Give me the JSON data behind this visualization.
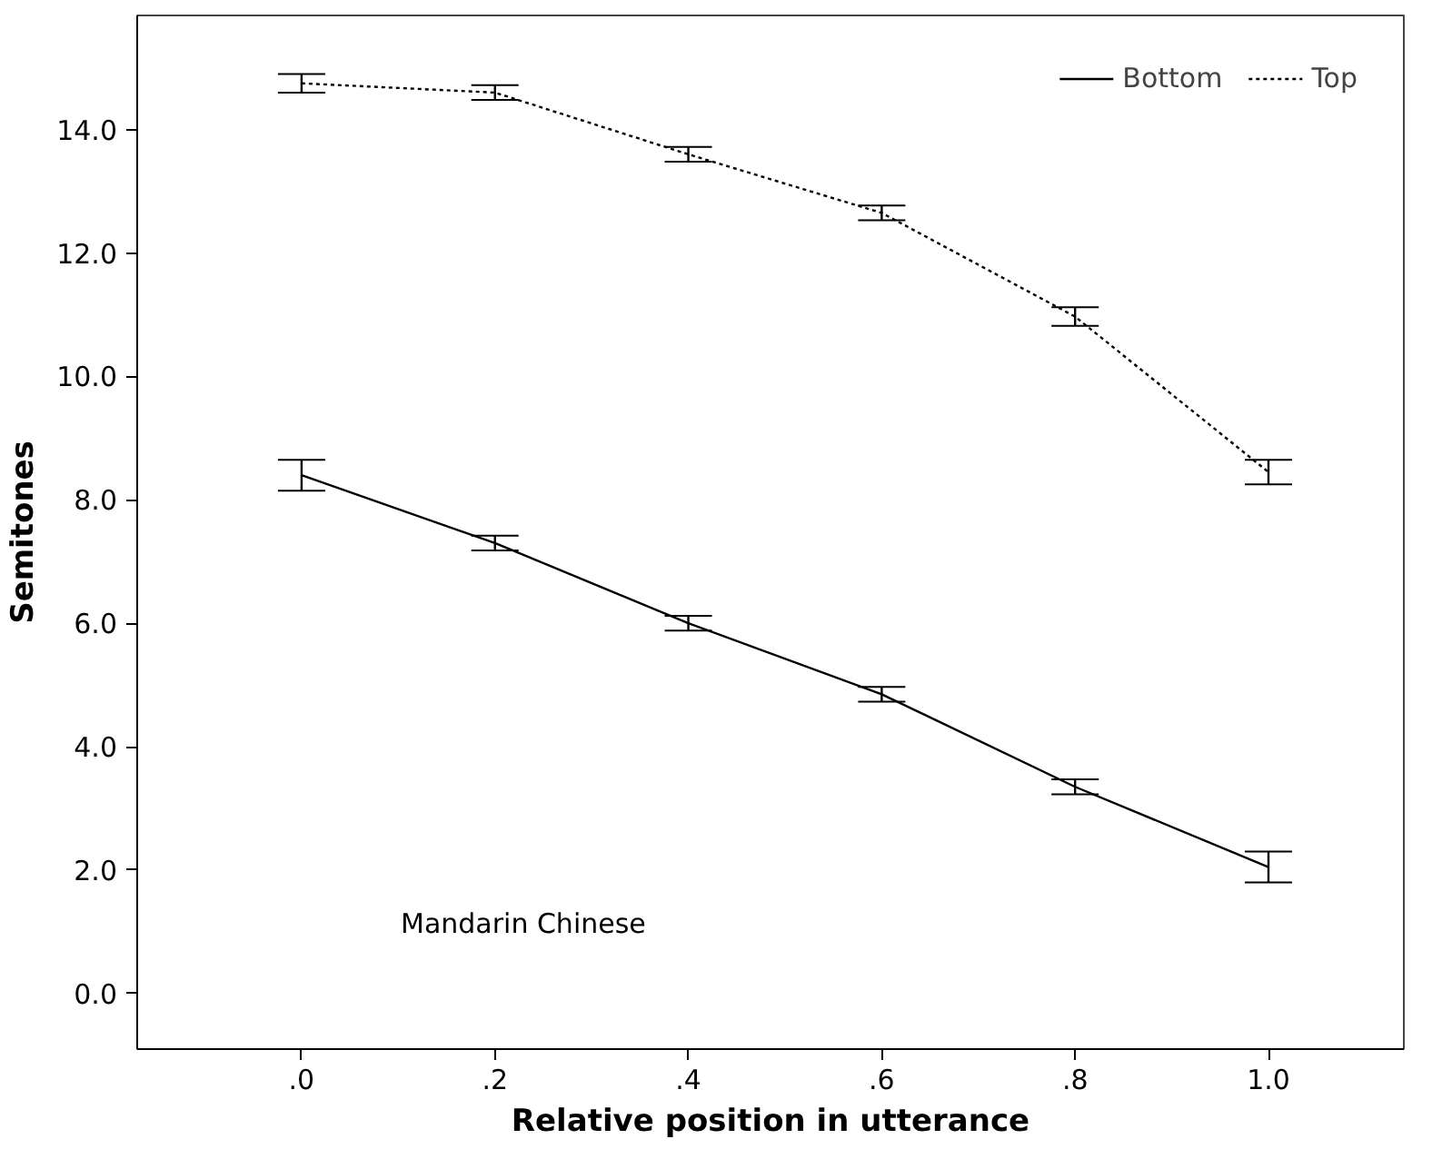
{
  "chart_data": {
    "type": "line",
    "xlabel": "Relative position in utterance",
    "ylabel": "Semitones",
    "x": [
      0,
      0.2,
      0.4,
      0.6,
      0.8,
      1.0
    ],
    "series": [
      {
        "name": "Bottom",
        "color": "#000000",
        "line_style": "solid",
        "values": [
          8.4,
          7.3,
          6.0,
          4.85,
          3.35,
          2.05
        ],
        "errors": [
          0.25,
          0.12,
          0.12,
          0.12,
          0.12,
          0.25
        ]
      },
      {
        "name": "Top",
        "color": "#000000",
        "line_style": "dotted",
        "values": [
          14.75,
          14.6,
          13.6,
          12.65,
          10.97,
          8.45
        ],
        "errors": [
          0.15,
          0.12,
          0.12,
          0.12,
          0.15,
          0.2
        ]
      }
    ],
    "xlim": [
      -0.17,
      1.14
    ],
    "ylim": [
      -0.9,
      15.85
    ],
    "xticks": [
      {
        "value": 0,
        "label": ".0"
      },
      {
        "value": 0.2,
        "label": ".2"
      },
      {
        "value": 0.4,
        "label": ".4"
      },
      {
        "value": 0.6,
        "label": ".6"
      },
      {
        "value": 0.8,
        "label": ".8"
      },
      {
        "value": 1.0,
        "label": "1.0"
      }
    ],
    "yticks": [
      {
        "value": 0,
        "label": "0.0"
      },
      {
        "value": 2,
        "label": "2.0"
      },
      {
        "value": 4,
        "label": "4.0"
      },
      {
        "value": 6,
        "label": "6.0"
      },
      {
        "value": 8,
        "label": "8.0"
      },
      {
        "value": 10,
        "label": "10.0"
      },
      {
        "value": 12,
        "label": "12.0"
      },
      {
        "value": 14,
        "label": "14.0"
      }
    ],
    "annotations": [
      "Mandarin Chinese"
    ],
    "grid": false,
    "legend": "top right",
    "marker": "none"
  }
}
